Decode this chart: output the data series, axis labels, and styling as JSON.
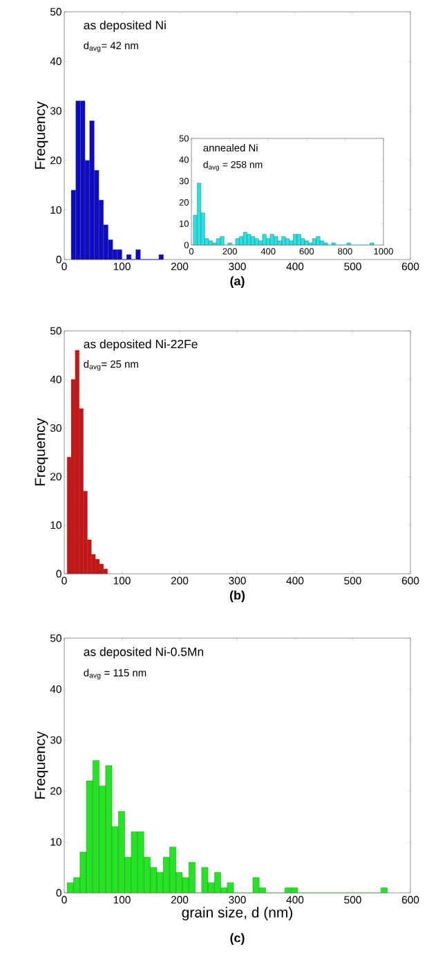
{
  "chart_data": [
    {
      "type": "histogram",
      "ylabel": "Frequency",
      "color": "#0c0cc8",
      "bins": [
        12,
        20,
        28,
        36,
        44,
        52,
        60,
        68,
        76,
        84,
        92,
        100,
        108,
        116,
        124,
        132,
        140,
        148,
        156,
        164,
        172
      ],
      "values": [
        14,
        32,
        32,
        20,
        28,
        18,
        12,
        7,
        4,
        2,
        2,
        0,
        1,
        0,
        2,
        0,
        0,
        0,
        0,
        1
      ],
      "xlim": [
        0,
        600
      ],
      "ylim": [
        0,
        50
      ],
      "xticks": [
        0,
        100,
        200,
        300,
        400,
        500,
        600
      ],
      "yticks": [
        0,
        10,
        20,
        30,
        40,
        50
      ],
      "annotations": [
        "as deposited Ni",
        "d$_{avg}$= 42 nm",
        "(a)"
      ]
    },
    {
      "type": "histogram",
      "color": "#22e4e4",
      "bins": [
        10,
        30,
        50,
        70,
        90,
        110,
        130,
        150,
        170,
        190,
        210,
        230,
        250,
        270,
        290,
        310,
        330,
        350,
        370,
        390,
        410,
        430,
        450,
        470,
        490,
        510,
        530,
        550,
        570,
        590,
        610,
        630,
        650,
        670,
        690,
        710,
        730,
        750,
        770,
        790,
        810,
        830,
        850,
        870,
        890,
        910,
        930,
        950
      ],
      "values": [
        14,
        29,
        15,
        3,
        2,
        1,
        3,
        4,
        0,
        1,
        0,
        3,
        4,
        6,
        5,
        4,
        3,
        2,
        5,
        3,
        5,
        4,
        2,
        4,
        3,
        2,
        5,
        5,
        3,
        2,
        1,
        3,
        4,
        2,
        1,
        0,
        1,
        0,
        0,
        0,
        1,
        0,
        0,
        0,
        0,
        0,
        1
      ],
      "xlim": [
        0,
        1000
      ],
      "ylim": [
        0,
        50
      ],
      "xticks": [
        0,
        200,
        400,
        600,
        800,
        1000
      ],
      "yticks": [
        0,
        10,
        20,
        30,
        40,
        50
      ],
      "annotations": [
        "annealed Ni",
        "d$_{avg}$ = 258 nm"
      ]
    },
    {
      "type": "histogram",
      "ylabel": "Frequency",
      "color": "#cc1414",
      "bins": [
        5,
        12,
        19,
        26,
        33,
        40,
        47,
        54,
        61,
        68,
        75
      ],
      "values": [
        24,
        40,
        46,
        34,
        17,
        7,
        4,
        3,
        2,
        1
      ],
      "xlim": [
        0,
        600
      ],
      "ylim": [
        0,
        50
      ],
      "xticks": [
        0,
        100,
        200,
        300,
        400,
        500,
        600
      ],
      "yticks": [
        0,
        10,
        20,
        30,
        40,
        50
      ],
      "annotations": [
        "as deposited Ni-22Fe",
        "d$_{avg}$= 25 nm",
        "(b)"
      ]
    },
    {
      "type": "histogram",
      "ylabel": "Frequency",
      "xlabel": "grain size, d (nm)",
      "color": "#22e622",
      "bins": [
        5,
        16.1,
        27.2,
        38.3,
        49.4,
        60.5,
        71.6,
        82.7,
        93.8,
        104.9,
        116,
        127.1,
        138.2,
        149.3,
        160.4,
        171.5,
        182.6,
        193.7,
        204.8,
        215.9,
        227,
        238.1,
        249.2,
        260.3,
        271.4,
        282.5,
        293.6,
        304.7,
        315.8,
        326.9,
        338,
        349.1,
        360.2,
        371.3,
        382.4,
        393.5,
        404.6,
        415.7,
        426.8,
        437.9,
        449,
        460.1,
        471.2,
        482.3,
        493.4,
        504.5,
        515.6,
        526.7,
        537.8,
        548.9,
        560
      ],
      "values": [
        2,
        3,
        8,
        22,
        26,
        21,
        25,
        13,
        16,
        7,
        12,
        12,
        7,
        5,
        4,
        7,
        9,
        4,
        3,
        6,
        0,
        5,
        2,
        4,
        1,
        2,
        0,
        0,
        0,
        3,
        1,
        0,
        0,
        0,
        1,
        1,
        0,
        0,
        0,
        0,
        0,
        0,
        0,
        0,
        0,
        0,
        0,
        0,
        0,
        1
      ],
      "xlim": [
        0,
        600
      ],
      "ylim": [
        0,
        50
      ],
      "xticks": [
        0,
        100,
        200,
        300,
        400,
        500,
        600
      ],
      "yticks": [
        0,
        10,
        20,
        30,
        40,
        50
      ],
      "annotations": [
        "as deposited Ni-0.5Mn",
        "d$_{avg}$ = 115 nm",
        "(c)"
      ]
    }
  ]
}
